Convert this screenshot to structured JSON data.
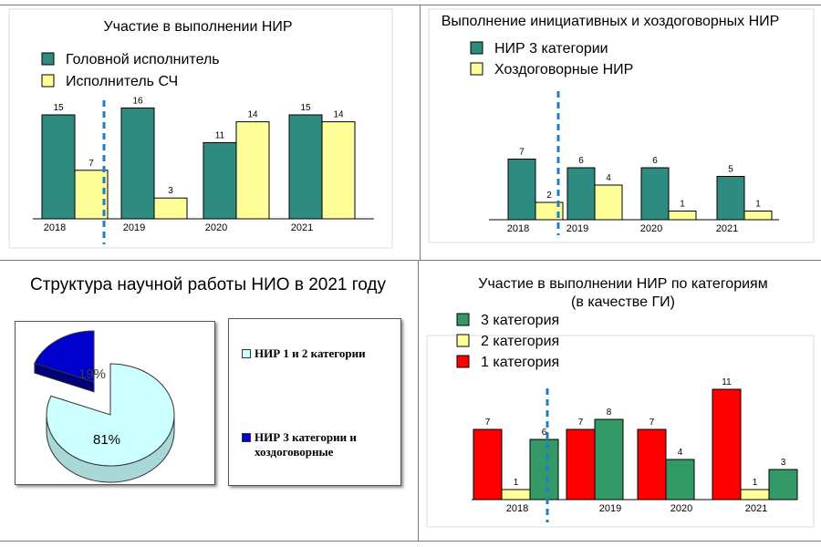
{
  "chart_data": [
    {
      "type": "bar",
      "title": "Участие в выполнении НИР",
      "categories": [
        "2018",
        "2019",
        "2020",
        "2021"
      ],
      "series": [
        {
          "name": "Головной исполнитель",
          "color": "#2f8a80",
          "values": [
            15,
            16,
            11,
            15
          ]
        },
        {
          "name": "Исполнитель СЧ",
          "color": "#ffff99",
          "values": [
            7,
            3,
            14,
            14
          ]
        }
      ],
      "ylim": [
        0,
        18
      ],
      "legend": "top-left",
      "divider_after_category": "2018"
    },
    {
      "type": "bar",
      "title": "Выполнение инициативных и хоздоговорных НИР",
      "categories": [
        "2018",
        "2019",
        "2020",
        "2021"
      ],
      "series": [
        {
          "name": "НИР 3 категории",
          "color": "#2f8a80",
          "values": [
            7,
            6,
            6,
            5
          ]
        },
        {
          "name": "Хоздоговорные НИР",
          "color": "#ffff99",
          "values": [
            2,
            4,
            1,
            1
          ]
        }
      ],
      "ylim": [
        0,
        18
      ],
      "legend": "top-left",
      "divider_after_category": "2018"
    },
    {
      "type": "pie",
      "title": "Структура научной работы НИО в 2021 году",
      "slices": [
        {
          "name": "НИР 1 и 2 категории",
          "value": 81,
          "label": "81%",
          "color": "#ccffff"
        },
        {
          "name": "НИР 3 категории и хоздоговорные",
          "value": 19,
          "label": "19%",
          "color": "#0000cc"
        }
      ],
      "legend": "right"
    },
    {
      "type": "bar",
      "title": "Участие в выполнении НИР по категориям",
      "subtitle": "(в качестве ГИ)",
      "categories": [
        "2018",
        "2019",
        "2020",
        "2021"
      ],
      "series": [
        {
          "name": "3 категория",
          "color": "#339966",
          "values": [
            6,
            8,
            4,
            3
          ]
        },
        {
          "name": "2 категория",
          "color": "#ffff99",
          "values": [
            1,
            null,
            null,
            1
          ]
        },
        {
          "name": "1 категория",
          "color": "#ff0000",
          "values": [
            7,
            7,
            7,
            11
          ]
        }
      ],
      "ylim": [
        0,
        12
      ],
      "legend": "top-left",
      "divider_after_category": "2018"
    }
  ]
}
